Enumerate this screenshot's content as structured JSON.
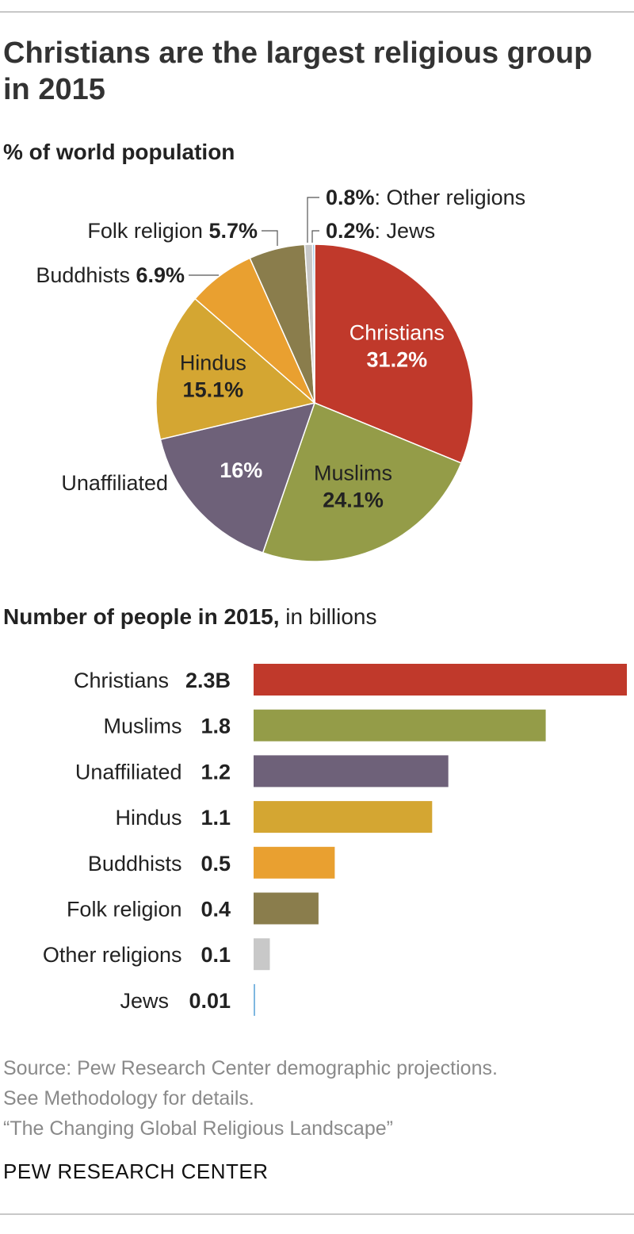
{
  "title": "Christians are the largest religious group in 2015",
  "pie_subtitle": "% of world population",
  "bar_subtitle_bold": "Number of people in 2015,",
  "bar_subtitle_rest": " in billions",
  "source_lines": [
    "Source: Pew Research Center demographic projections.",
    "See Methodology for details.",
    "“The Changing Global Religious Landscape”"
  ],
  "logo": "PEW RESEARCH CENTER",
  "colors": {
    "christians": "#c0392b",
    "muslims": "#949c48",
    "unaffiliated": "#6e6179",
    "hindus": "#d4a632",
    "buddhists": "#e9a030",
    "folk": "#8a7d4c",
    "other": "#c8c8c8",
    "jews": "#7fb7e0"
  },
  "chart_data": [
    {
      "type": "pie",
      "title": "% of world population",
      "slices": [
        {
          "key": "christians",
          "label": "Christians",
          "value": 31.2,
          "value_label": "31.2%"
        },
        {
          "key": "muslims",
          "label": "Muslims",
          "value": 24.1,
          "value_label": "24.1%"
        },
        {
          "key": "unaffiliated",
          "label": "Unaffiliated",
          "value": 16.0,
          "value_label": "16%"
        },
        {
          "key": "hindus",
          "label": "Hindus",
          "value": 15.1,
          "value_label": "15.1%"
        },
        {
          "key": "buddhists",
          "label": "Buddhists",
          "value": 6.9,
          "value_label": "6.9%"
        },
        {
          "key": "folk",
          "label": "Folk religion",
          "value": 5.7,
          "value_label": "5.7%"
        },
        {
          "key": "other",
          "label": "Other religions",
          "value": 0.8,
          "value_label": "0.8%"
        },
        {
          "key": "jews",
          "label": "Jews",
          "value": 0.2,
          "value_label": "0.2%"
        }
      ]
    },
    {
      "type": "bar",
      "orientation": "horizontal",
      "title": "Number of people in 2015, in billions",
      "categories": [
        "Christians",
        "Muslims",
        "Unaffiliated",
        "Hindus",
        "Buddhists",
        "Folk religion",
        "Other religions",
        "Jews"
      ],
      "keys": [
        "christians",
        "muslims",
        "unaffiliated",
        "hindus",
        "buddhists",
        "folk",
        "other",
        "jews"
      ],
      "values": [
        2.3,
        1.8,
        1.2,
        1.1,
        0.5,
        0.4,
        0.1,
        0.01
      ],
      "value_labels": [
        "2.3B",
        "1.8",
        "1.2",
        "1.1",
        "0.5",
        "0.4",
        "0.1",
        "0.01"
      ]
    }
  ]
}
